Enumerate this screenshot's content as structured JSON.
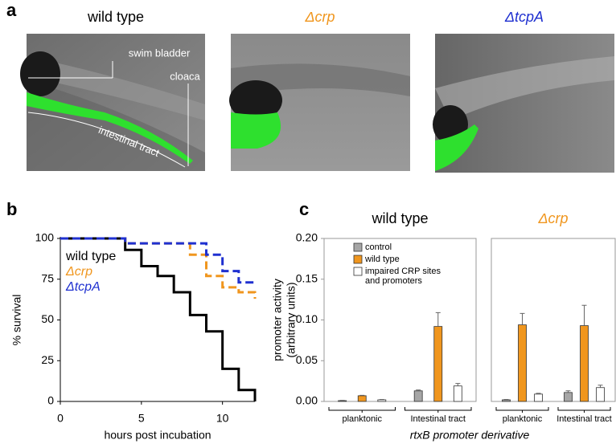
{
  "panel_labels": [
    "a",
    "b",
    "c"
  ],
  "images": [
    {
      "title": "wild type",
      "color": "#000000"
    },
    {
      "title": "Δcrp",
      "color": "#f0961e"
    },
    {
      "title": "ΔtcpA",
      "color": "#1f30d0"
    }
  ],
  "annotations": [
    "swim bladder",
    "cloaca",
    "intestinal tract"
  ],
  "chart_data": [
    {
      "type": "line",
      "step": "post",
      "xlabel": "hours post incubation",
      "ylabel": "% survival",
      "x": [
        0,
        4,
        5,
        6,
        7,
        8,
        9,
        10,
        11,
        12
      ],
      "series": [
        {
          "name": "wild type",
          "color": "#000000",
          "dash": false,
          "values": [
            100,
            93,
            83,
            77,
            67,
            53,
            43,
            20,
            7,
            0
          ]
        },
        {
          "name": "Δcrp",
          "color": "#f0961e",
          "dash": true,
          "values": [
            100,
            97,
            97,
            97,
            97,
            90,
            77,
            70,
            67,
            63
          ]
        },
        {
          "name": "ΔtcpA",
          "color": "#1f30d0",
          "dash": true,
          "values": [
            100,
            97,
            97,
            97,
            97,
            97,
            90,
            80,
            73,
            73
          ]
        }
      ],
      "xlim": [
        0,
        12
      ],
      "xticks": [
        0,
        5,
        10
      ],
      "ylim": [
        0,
        100
      ],
      "yticks": [
        0,
        25,
        50,
        75,
        100
      ]
    },
    {
      "type": "bar",
      "title": "wild type",
      "title_color": "#000000",
      "ylabel": [
        "promoter activity",
        "(arbitrary units)"
      ],
      "xlabel": "rtxB promoter derivative",
      "categories": [
        "planktonic",
        "Intestinal tract"
      ],
      "series": [
        {
          "name": "control",
          "color": "#a6a6a6",
          "values": [
            0.001,
            0.013
          ],
          "errors": [
            0.0003,
            0.001
          ]
        },
        {
          "name": "wild type",
          "color": "#f0961e",
          "values": [
            0.007,
            0.092
          ],
          "errors": [
            0.0005,
            0.017
          ]
        },
        {
          "name": "impaired CRP sites and promoters",
          "color": "#ffffff",
          "values": [
            0.002,
            0.019
          ],
          "errors": [
            0.0005,
            0.003
          ]
        }
      ],
      "ylim": [
        0,
        0.2
      ],
      "yticks": [
        {
          "value": 0,
          "label": "0.00"
        },
        {
          "value": 0.05,
          "label": "0.05"
        },
        {
          "value": 0.1,
          "label": "0.10"
        },
        {
          "value": 0.15,
          "label": "0.15"
        },
        {
          "value": 0.2,
          "label": "0.20"
        }
      ]
    },
    {
      "type": "bar",
      "title": "Δcrp",
      "title_color": "#f0961e",
      "categories": [
        "planktonic",
        "Intestinal tract"
      ],
      "series": [
        {
          "color": "#a6a6a6",
          "values": [
            0.002,
            0.011
          ],
          "errors": [
            0.0005,
            0.002
          ]
        },
        {
          "color": "#f0961e",
          "values": [
            0.094,
            0.093
          ],
          "errors": [
            0.014,
            0.025
          ]
        },
        {
          "color": "#ffffff",
          "values": [
            0.009,
            0.017
          ],
          "errors": [
            0.001,
            0.003
          ]
        }
      ],
      "ylim": [
        0,
        0.2
      ]
    }
  ]
}
